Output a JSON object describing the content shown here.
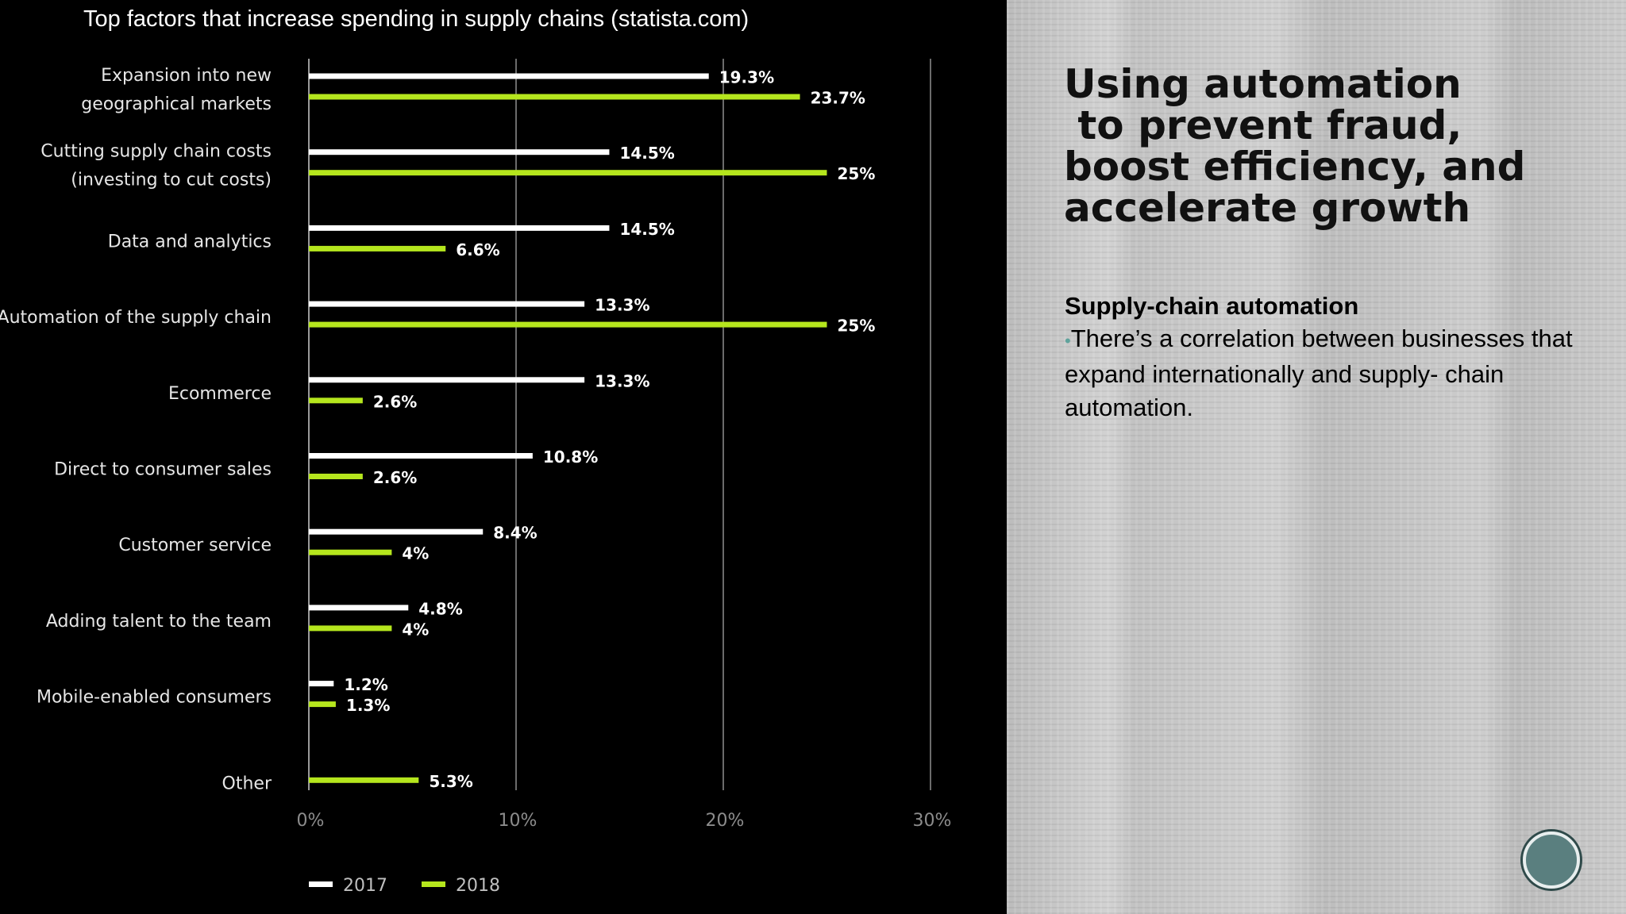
{
  "chart_data": {
    "type": "bar",
    "title": "Top factors that increase spending in supply chains (statista.com)",
    "categories": [
      [
        "Expansion into new",
        "geographical markets"
      ],
      [
        "Cutting supply chain costs",
        "(investing to cut costs)"
      ],
      [
        "Data and analytics"
      ],
      [
        "Automation of the supply chain"
      ],
      [
        "Ecommerce"
      ],
      [
        "Direct to consumer sales"
      ],
      [
        "Customer service"
      ],
      [
        "Adding talent to the team"
      ],
      [
        "Mobile-enabled consumers"
      ],
      [
        "Other"
      ]
    ],
    "series": [
      {
        "name": "2017",
        "color": "#ffffff",
        "values": [
          19.3,
          14.5,
          14.5,
          13.3,
          13.3,
          10.8,
          8.4,
          4.8,
          1.2,
          null
        ],
        "labels": [
          "19.3%",
          "14.5%",
          "14.5%",
          "13.3%",
          "13.3%",
          "10.8%",
          "8.4%",
          "4.8%",
          "1.2%",
          null
        ]
      },
      {
        "name": "2018",
        "color": "#b5e61d",
        "values": [
          23.7,
          25,
          6.6,
          25,
          2.6,
          2.6,
          4,
          4,
          1.3,
          5.3
        ],
        "labels": [
          "23.7%",
          "25%",
          "6.6%",
          "25%",
          "2.6%",
          "2.6%",
          "4%",
          "4%",
          "1.3%",
          "5.3%"
        ]
      }
    ],
    "xlim": [
      0,
      30
    ],
    "xticks": [
      0,
      10,
      20,
      30
    ],
    "xtick_labels": [
      "0%",
      "10%",
      "20%",
      "30%"
    ],
    "grid": true,
    "legend_position": "bottom-left",
    "orientation": "horizontal"
  },
  "slide": {
    "heading": "Using automation\n to prevent fraud,\nboost efficiency, and\naccelerate growth",
    "subheading": "Supply-chain automation",
    "bullet": "•",
    "body": "There’s a correlation between businesses that expand internationally and supply- chain automation."
  },
  "colors": {
    "chart_background": "#000000",
    "accent_2018": "#b5e61d",
    "series_2017": "#ffffff",
    "nav_button": "#5a7f7f"
  },
  "nav": {
    "icon": "circle-nav-button"
  }
}
